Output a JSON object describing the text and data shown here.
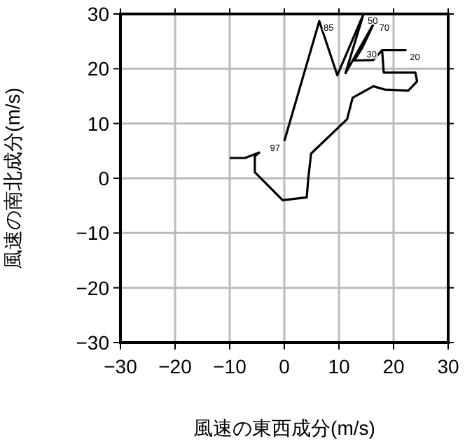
{
  "chart_data": {
    "type": "line",
    "xlabel": "風速の東西成分(m/s)",
    "ylabel": "風速の南北成分(m/s)",
    "x": [
      0,
      6.4,
      9.7,
      14.5,
      11.2,
      16.6,
      14.3,
      12.8,
      16.3,
      17.9,
      22.2,
      17.9,
      18.2,
      24,
      24.3,
      22.7,
      18.4,
      16.3,
      12.5,
      11.5,
      4.9,
      4.4,
      4.1,
      -0.3,
      -5.4,
      -5.4,
      -4.6,
      -7.2,
      -10
    ],
    "series": [
      {
        "color": "#000000",
        "values": [
          6.8,
          28.7,
          18.8,
          30,
          19.2,
          28.7,
          23.9,
          21.5,
          21.6,
          23.4,
          23.4,
          23.4,
          19.3,
          19.3,
          17.7,
          16,
          16.2,
          16.8,
          14.7,
          10.8,
          4.5,
          0.1,
          -3.5,
          -4,
          1.1,
          4,
          4.7,
          3.7,
          3.7
        ]
      }
    ],
    "xlim": [
      -30,
      30
    ],
    "ylim": [
      -30,
      30
    ],
    "xticks": [
      {
        "value": -30,
        "label": "−30"
      },
      {
        "value": -20,
        "label": "−20"
      },
      {
        "value": -10,
        "label": "−10"
      },
      0,
      10,
      20,
      30
    ],
    "yticks": [
      {
        "value": -30,
        "label": "−30"
      },
      {
        "value": -20,
        "label": "−20"
      },
      {
        "value": -10,
        "label": "−10"
      },
      0,
      10,
      20,
      30
    ],
    "grid": true,
    "line_style": "solid",
    "marker": "none",
    "annotations": [
      {
        "text": "97",
        "x": 0,
        "y": 6.8
      },
      {
        "text": "85",
        "x": 6.4,
        "y": 28.7
      },
      {
        "text": "70",
        "x": 16.6,
        "y": 28.7
      },
      {
        "text": "50",
        "x": 14.5,
        "y": 30
      },
      {
        "text": "30",
        "x": 14.3,
        "y": 23.9
      },
      {
        "text": "20",
        "x": 22.2,
        "y": 23.4
      }
    ]
  }
}
